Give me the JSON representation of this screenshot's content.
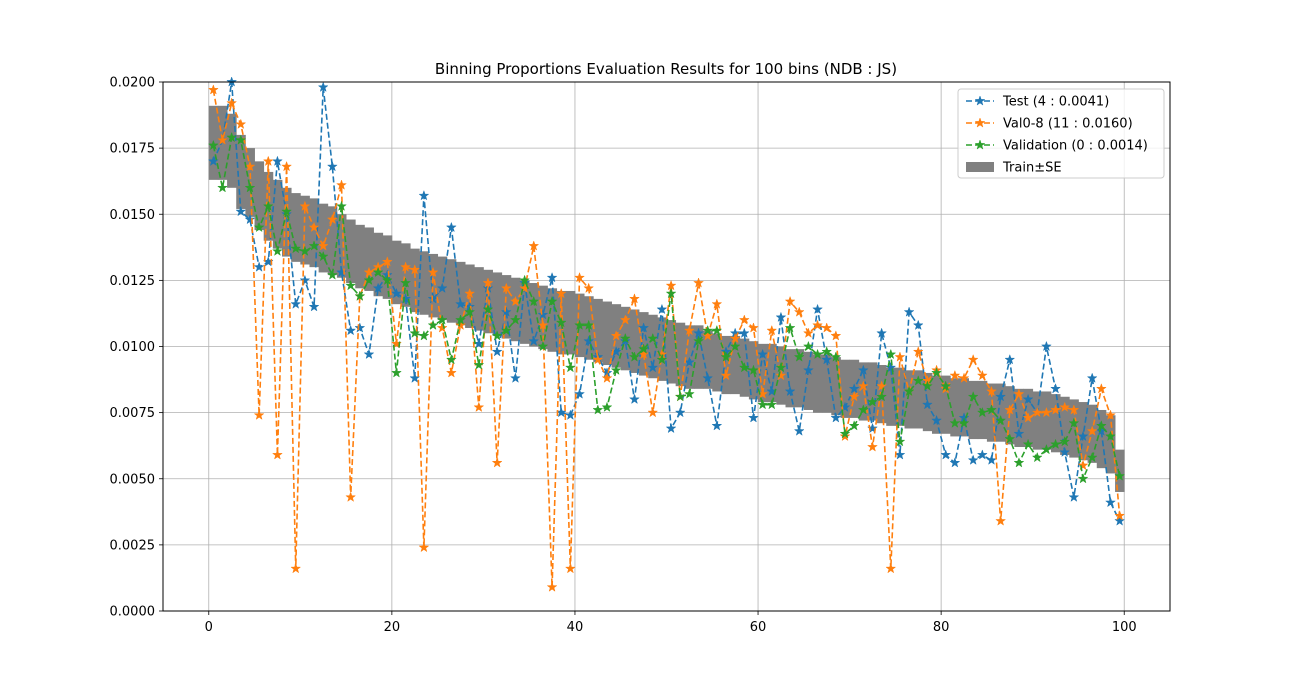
{
  "chart_data": {
    "type": "line",
    "title": "Binning Proportions Evaluation Results for 100 bins (NDB : JS)",
    "xlabel": "",
    "ylabel": "",
    "xlim": [
      -5,
      105
    ],
    "ylim": [
      0,
      0.02
    ],
    "xticks": [
      0,
      20,
      40,
      60,
      80,
      100
    ],
    "yticks": [
      0.0,
      0.0025,
      0.005,
      0.0075,
      0.01,
      0.0125,
      0.015,
      0.0175,
      0.02
    ],
    "ytick_labels": [
      "0.0000",
      "0.0025",
      "0.0050",
      "0.0075",
      "0.0100",
      "0.0125",
      "0.0150",
      "0.0175",
      "0.0200"
    ],
    "grid": true,
    "legend_position": "top-right",
    "band": {
      "name": "Train±SE",
      "color": "#808080",
      "bin_width": 1,
      "center": [
        0.0177,
        0.0177,
        0.0174,
        0.0166,
        0.0162,
        0.0157,
        0.0153,
        0.015,
        0.0147,
        0.0145,
        0.0144,
        0.0143,
        0.0141,
        0.014,
        0.0138,
        0.0136,
        0.0134,
        0.0133,
        0.0131,
        0.013,
        0.0128,
        0.0127,
        0.0125,
        0.0124,
        0.0123,
        0.0122,
        0.0121,
        0.012,
        0.0119,
        0.0118,
        0.0117,
        0.0116,
        0.0115,
        0.0114,
        0.0113,
        0.0112,
        0.0111,
        0.011,
        0.0109,
        0.0109,
        0.0108,
        0.0107,
        0.0106,
        0.0105,
        0.0104,
        0.0103,
        0.0102,
        0.0101,
        0.01,
        0.0099,
        0.0098,
        0.0097,
        0.0096,
        0.0096,
        0.0095,
        0.0094,
        0.0093,
        0.0093,
        0.0092,
        0.0091,
        0.009,
        0.009,
        0.0089,
        0.0088,
        0.0088,
        0.0087,
        0.0086,
        0.0086,
        0.0085,
        0.0084,
        0.0084,
        0.0083,
        0.0083,
        0.0082,
        0.0081,
        0.0081,
        0.008,
        0.008,
        0.0079,
        0.0078,
        0.0078,
        0.0077,
        0.0077,
        0.0076,
        0.0076,
        0.0075,
        0.0075,
        0.0074,
        0.0073,
        0.0073,
        0.0072,
        0.0072,
        0.0071,
        0.007,
        0.0069,
        0.0068,
        0.0067,
        0.0065,
        0.0063,
        0.0053
      ],
      "half_width": [
        0.0014,
        0.0014,
        0.0014,
        0.0014,
        0.0013,
        0.0013,
        0.0013,
        0.0013,
        0.0013,
        0.0013,
        0.0013,
        0.0013,
        0.0013,
        0.0013,
        0.0012,
        0.0012,
        0.0012,
        0.0012,
        0.0012,
        0.0012,
        0.0012,
        0.0012,
        0.0012,
        0.0012,
        0.0012,
        0.0012,
        0.0012,
        0.0012,
        0.0012,
        0.0012,
        0.0012,
        0.0012,
        0.0012,
        0.0012,
        0.0012,
        0.0012,
        0.0012,
        0.0012,
        0.0012,
        0.0012,
        0.0012,
        0.0012,
        0.0012,
        0.0012,
        0.0012,
        0.0012,
        0.0012,
        0.0012,
        0.0012,
        0.0012,
        0.0012,
        0.0012,
        0.0012,
        0.0012,
        0.0011,
        0.0011,
        0.0011,
        0.0011,
        0.0011,
        0.0011,
        0.0011,
        0.0011,
        0.0011,
        0.0011,
        0.0011,
        0.0011,
        0.0011,
        0.0011,
        0.0011,
        0.0011,
        0.0011,
        0.0011,
        0.0011,
        0.0011,
        0.0011,
        0.0011,
        0.0011,
        0.0011,
        0.0011,
        0.0011,
        0.0011,
        0.0011,
        0.0011,
        0.0011,
        0.0011,
        0.0011,
        0.0011,
        0.0011,
        0.0011,
        0.0011,
        0.0011,
        0.0011,
        0.0011,
        0.0011,
        0.0011,
        0.0011,
        0.0011,
        0.0011,
        0.0011,
        0.0008
      ]
    },
    "x": [
      0.5,
      1.5,
      2.5,
      3.5,
      4.5,
      5.5,
      6.5,
      7.5,
      8.5,
      9.5,
      10.5,
      11.5,
      12.5,
      13.5,
      14.5,
      15.5,
      16.5,
      17.5,
      18.5,
      19.5,
      20.5,
      21.5,
      22.5,
      23.5,
      24.5,
      25.5,
      26.5,
      27.5,
      28.5,
      29.5,
      30.5,
      31.5,
      32.5,
      33.5,
      34.5,
      35.5,
      36.5,
      37.5,
      38.5,
      39.5,
      40.5,
      41.5,
      42.5,
      43.5,
      44.5,
      45.5,
      46.5,
      47.5,
      48.5,
      49.5,
      50.5,
      51.5,
      52.5,
      53.5,
      54.5,
      55.5,
      56.5,
      57.5,
      58.5,
      59.5,
      60.5,
      61.5,
      62.5,
      63.5,
      64.5,
      65.5,
      66.5,
      67.5,
      68.5,
      69.5,
      70.5,
      71.5,
      72.5,
      73.5,
      74.5,
      75.5,
      76.5,
      77.5,
      78.5,
      79.5,
      80.5,
      81.5,
      82.5,
      83.5,
      84.5,
      85.5,
      86.5,
      87.5,
      88.5,
      89.5,
      90.5,
      91.5,
      92.5,
      93.5,
      94.5,
      95.5,
      96.5,
      97.5,
      98.5,
      99.5
    ],
    "series": [
      {
        "name": "Test (4 : 0.0041)",
        "color": "#1f77b4",
        "values": [
          0.017,
          0.0178,
          0.02,
          0.0151,
          0.0148,
          0.013,
          0.0132,
          0.017,
          0.015,
          0.0116,
          0.0125,
          0.0115,
          0.0198,
          0.0168,
          0.0128,
          0.0106,
          0.0107,
          0.0097,
          0.0122,
          0.0127,
          0.012,
          0.0118,
          0.0088,
          0.0157,
          0.0118,
          0.0122,
          0.0145,
          0.0116,
          0.0115,
          0.0101,
          0.0122,
          0.0098,
          0.0113,
          0.0088,
          0.0124,
          0.0102,
          0.0112,
          0.0126,
          0.0075,
          0.0074,
          0.0082,
          0.0102,
          0.0096,
          0.009,
          0.0098,
          0.0102,
          0.008,
          0.0107,
          0.0092,
          0.0114,
          0.0069,
          0.0075,
          0.0094,
          0.0105,
          0.0088,
          0.007,
          0.0098,
          0.0105,
          0.0105,
          0.0073,
          0.0097,
          0.0083,
          0.0111,
          0.0083,
          0.0068,
          0.0091,
          0.0114,
          0.0095,
          0.0073,
          0.0077,
          0.0084,
          0.0091,
          0.0069,
          0.0105,
          0.0092,
          0.0059,
          0.0113,
          0.0108,
          0.0078,
          0.0072,
          0.0059,
          0.0056,
          0.0073,
          0.0057,
          0.0059,
          0.0057,
          0.0081,
          0.0095,
          0.0067,
          0.008,
          0.0075,
          0.01,
          0.0084,
          0.006,
          0.0043,
          0.0066,
          0.0088,
          0.0068,
          0.0041,
          0.0034
        ]
      },
      {
        "name": "Val0-8 (11 : 0.0160)",
        "color": "#ff7f0e",
        "values": [
          0.0197,
          0.0178,
          0.0192,
          0.0184,
          0.0168,
          0.0074,
          0.017,
          0.0059,
          0.0168,
          0.0016,
          0.0153,
          0.0145,
          0.0138,
          0.0148,
          0.0161,
          0.0043,
          0.0119,
          0.0128,
          0.013,
          0.0132,
          0.0101,
          0.013,
          0.0129,
          0.0024,
          0.0128,
          0.0107,
          0.009,
          0.0108,
          0.012,
          0.0077,
          0.0124,
          0.0056,
          0.0122,
          0.0117,
          0.0122,
          0.0138,
          0.0108,
          0.0009,
          0.012,
          0.0016,
          0.0126,
          0.0122,
          0.0095,
          0.0088,
          0.0104,
          0.011,
          0.0118,
          0.0097,
          0.0075,
          0.0097,
          0.0123,
          0.0081,
          0.0106,
          0.0124,
          0.0104,
          0.0116,
          0.0089,
          0.0103,
          0.011,
          0.0107,
          0.0082,
          0.0106,
          0.0089,
          0.0117,
          0.0113,
          0.0105,
          0.0108,
          0.0107,
          0.0104,
          0.0066,
          0.0081,
          0.0085,
          0.0062,
          0.0085,
          0.0016,
          0.0096,
          0.0083,
          0.0098,
          0.0087,
          0.0091,
          0.0084,
          0.0089,
          0.0088,
          0.0095,
          0.0089,
          0.0083,
          0.0034,
          0.0076,
          0.0082,
          0.0073,
          0.0075,
          0.0075,
          0.0076,
          0.0077,
          0.0076,
          0.0055,
          0.0068,
          0.0084,
          0.0074,
          0.0036
        ]
      },
      {
        "name": "Validation (0 : 0.0014)",
        "color": "#2ca02c",
        "values": [
          0.0176,
          0.016,
          0.0179,
          0.0178,
          0.016,
          0.0145,
          0.0153,
          0.0136,
          0.0151,
          0.0137,
          0.0136,
          0.0138,
          0.0134,
          0.0127,
          0.0153,
          0.0123,
          0.0119,
          0.0125,
          0.0128,
          0.0125,
          0.009,
          0.0124,
          0.0105,
          0.0104,
          0.0108,
          0.011,
          0.0095,
          0.011,
          0.0113,
          0.0093,
          0.0114,
          0.0104,
          0.0106,
          0.011,
          0.0125,
          0.0117,
          0.01,
          0.0117,
          0.0109,
          0.0092,
          0.0108,
          0.0108,
          0.0076,
          0.0077,
          0.0091,
          0.0103,
          0.0096,
          0.0099,
          0.0103,
          0.0095,
          0.012,
          0.0081,
          0.0082,
          0.0102,
          0.0106,
          0.0106,
          0.0096,
          0.01,
          0.0092,
          0.0091,
          0.0078,
          0.0078,
          0.0092,
          0.0107,
          0.0096,
          0.01,
          0.0097,
          0.0098,
          0.0096,
          0.0067,
          0.007,
          0.0076,
          0.0079,
          0.0081,
          0.0097,
          0.0064,
          0.0083,
          0.0087,
          0.0085,
          0.009,
          0.0085,
          0.0071,
          0.0071,
          0.0081,
          0.0075,
          0.0076,
          0.0072,
          0.0065,
          0.0056,
          0.0063,
          0.0058,
          0.0061,
          0.0063,
          0.0064,
          0.0071,
          0.005,
          0.0058,
          0.007,
          0.0066,
          0.0051
        ]
      }
    ]
  }
}
